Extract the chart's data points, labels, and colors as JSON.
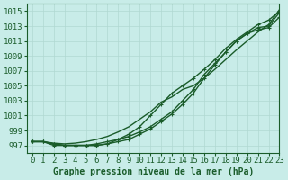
{
  "background_color": "#c8ece8",
  "grid_color": "#b0d8d2",
  "line_color": "#1a5c2a",
  "title": "Graphe pression niveau de la mer (hPa)",
  "tick_fontsize": 6.5,
  "xlim": [
    -0.5,
    23
  ],
  "ylim": [
    996.0,
    1016.0
  ],
  "yticks": [
    997,
    999,
    1001,
    1003,
    1005,
    1007,
    1009,
    1011,
    1013,
    1015
  ],
  "xticks": [
    0,
    1,
    2,
    3,
    4,
    5,
    6,
    7,
    8,
    9,
    10,
    11,
    12,
    13,
    14,
    15,
    16,
    17,
    18,
    19,
    20,
    21,
    22,
    23
  ],
  "series": [
    {
      "y": [
        997.5,
        997.5,
        997.3,
        997.2,
        997.3,
        997.5,
        997.8,
        998.2,
        998.8,
        999.5,
        1000.5,
        1001.5,
        1002.8,
        1003.5,
        1004.5,
        1005.0,
        1006.0,
        1007.2,
        1008.5,
        1009.8,
        1011.0,
        1012.2,
        1013.2,
        1015.2
      ],
      "marker": false,
      "lw": 1.0
    },
    {
      "y": [
        997.5,
        997.5,
        997.0,
        997.0,
        997.0,
        997.0,
        997.2,
        997.5,
        997.8,
        998.2,
        998.8,
        999.5,
        1000.5,
        1001.5,
        1003.0,
        1004.5,
        1006.5,
        1008.0,
        1009.5,
        1011.0,
        1012.0,
        1012.8,
        1013.0,
        1014.8
      ],
      "marker": true,
      "lw": 1.0
    },
    {
      "y": [
        997.5,
        997.5,
        997.2,
        997.0,
        997.0,
        997.0,
        997.0,
        997.2,
        997.5,
        997.8,
        998.5,
        999.2,
        1000.2,
        1001.2,
        1002.5,
        1004.0,
        1006.0,
        1007.8,
        1009.5,
        1011.0,
        1012.0,
        1012.5,
        1012.8,
        1014.2
      ],
      "marker": true,
      "lw": 1.0
    },
    {
      "y": [
        997.5,
        997.5,
        997.2,
        997.0,
        997.0,
        997.0,
        997.0,
        997.2,
        997.8,
        998.5,
        999.5,
        1001.0,
        1002.5,
        1004.0,
        1005.0,
        1006.0,
        1007.2,
        1008.5,
        1010.0,
        1011.2,
        1012.2,
        1013.2,
        1013.8,
        1015.0
      ],
      "marker": true,
      "lw": 1.0
    }
  ]
}
